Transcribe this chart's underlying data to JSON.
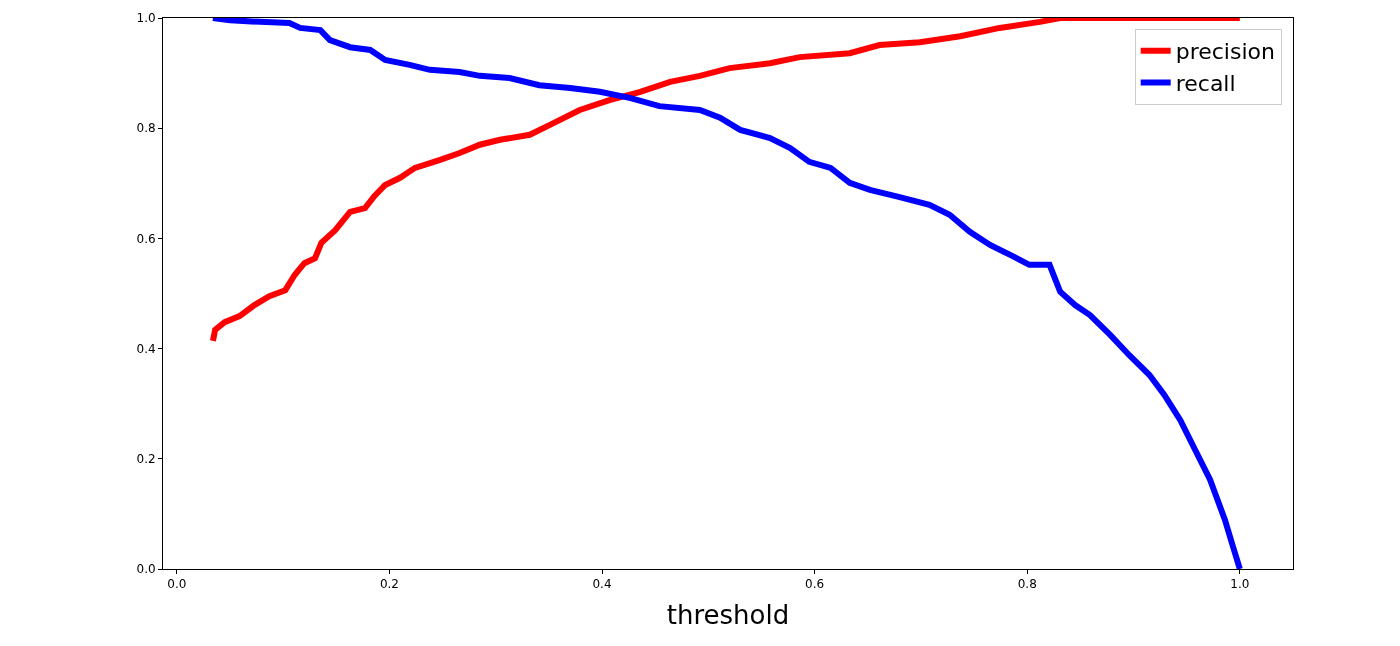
{
  "chart_data": {
    "type": "line",
    "xlabel": "threshold",
    "legend": "top right",
    "marker": "none",
    "line_style": "solid",
    "xlim": [
      -0.013,
      1.05
    ],
    "ylim": [
      0,
      1
    ],
    "xticks": [
      {
        "value": 0,
        "label": "0.0"
      },
      {
        "value": 0.2,
        "label": "0.2"
      },
      {
        "value": 0.4,
        "label": "0.4"
      },
      {
        "value": 0.6,
        "label": "0.6"
      },
      {
        "value": 0.8,
        "label": "0.8"
      },
      {
        "value": 1,
        "label": "1.0"
      }
    ],
    "yticks": [
      {
        "value": 0,
        "label": "0.0"
      },
      {
        "value": 0.2,
        "label": "0.2"
      },
      {
        "value": 0.4,
        "label": "0.4"
      },
      {
        "value": 0.6,
        "label": "0.6"
      },
      {
        "value": 0.8,
        "label": "0.8"
      },
      {
        "value": 1,
        "label": "1.0"
      }
    ],
    "series": [
      {
        "name": "precision",
        "color": "#ff0000",
        "x": [
          0.034,
          0.036,
          0.045,
          0.059,
          0.073,
          0.087,
          0.102,
          0.111,
          0.12,
          0.13,
          0.136,
          0.149,
          0.163,
          0.177,
          0.186,
          0.196,
          0.21,
          0.224,
          0.247,
          0.266,
          0.285,
          0.304,
          0.332,
          0.351,
          0.379,
          0.407,
          0.436,
          0.464,
          0.492,
          0.52,
          0.558,
          0.586,
          0.633,
          0.661,
          0.699,
          0.737,
          0.774,
          0.812,
          0.831,
          1.0
        ],
        "values": [
          0.414,
          0.434,
          0.448,
          0.459,
          0.479,
          0.495,
          0.506,
          0.534,
          0.555,
          0.564,
          0.592,
          0.615,
          0.648,
          0.655,
          0.677,
          0.697,
          0.71,
          0.728,
          0.742,
          0.755,
          0.77,
          0.779,
          0.788,
          0.806,
          0.833,
          0.851,
          0.866,
          0.884,
          0.895,
          0.909,
          0.918,
          0.929,
          0.936,
          0.951,
          0.956,
          0.967,
          0.982,
          0.993,
          1.0,
          1.0
        ]
      },
      {
        "name": "recall",
        "color": "#0000ff",
        "x": [
          0.034,
          0.05,
          0.078,
          0.106,
          0.116,
          0.135,
          0.144,
          0.163,
          0.182,
          0.196,
          0.219,
          0.238,
          0.266,
          0.285,
          0.313,
          0.341,
          0.37,
          0.398,
          0.426,
          0.454,
          0.492,
          0.511,
          0.53,
          0.558,
          0.577,
          0.595,
          0.615,
          0.633,
          0.652,
          0.68,
          0.708,
          0.727,
          0.746,
          0.765,
          0.784,
          0.802,
          0.821,
          0.831,
          0.845,
          0.859,
          0.878,
          0.896,
          0.915,
          0.929,
          0.944,
          0.958,
          0.972,
          0.986,
          0.993,
          1.0
        ],
        "values": [
          1.0,
          0.996,
          0.993,
          0.991,
          0.982,
          0.978,
          0.96,
          0.947,
          0.942,
          0.924,
          0.915,
          0.906,
          0.902,
          0.895,
          0.891,
          0.878,
          0.873,
          0.866,
          0.855,
          0.84,
          0.833,
          0.819,
          0.797,
          0.782,
          0.764,
          0.739,
          0.728,
          0.701,
          0.688,
          0.675,
          0.661,
          0.643,
          0.612,
          0.588,
          0.57,
          0.552,
          0.552,
          0.503,
          0.479,
          0.461,
          0.425,
          0.388,
          0.352,
          0.316,
          0.27,
          0.216,
          0.162,
          0.089,
          0.044,
          0.0
        ]
      }
    ]
  }
}
